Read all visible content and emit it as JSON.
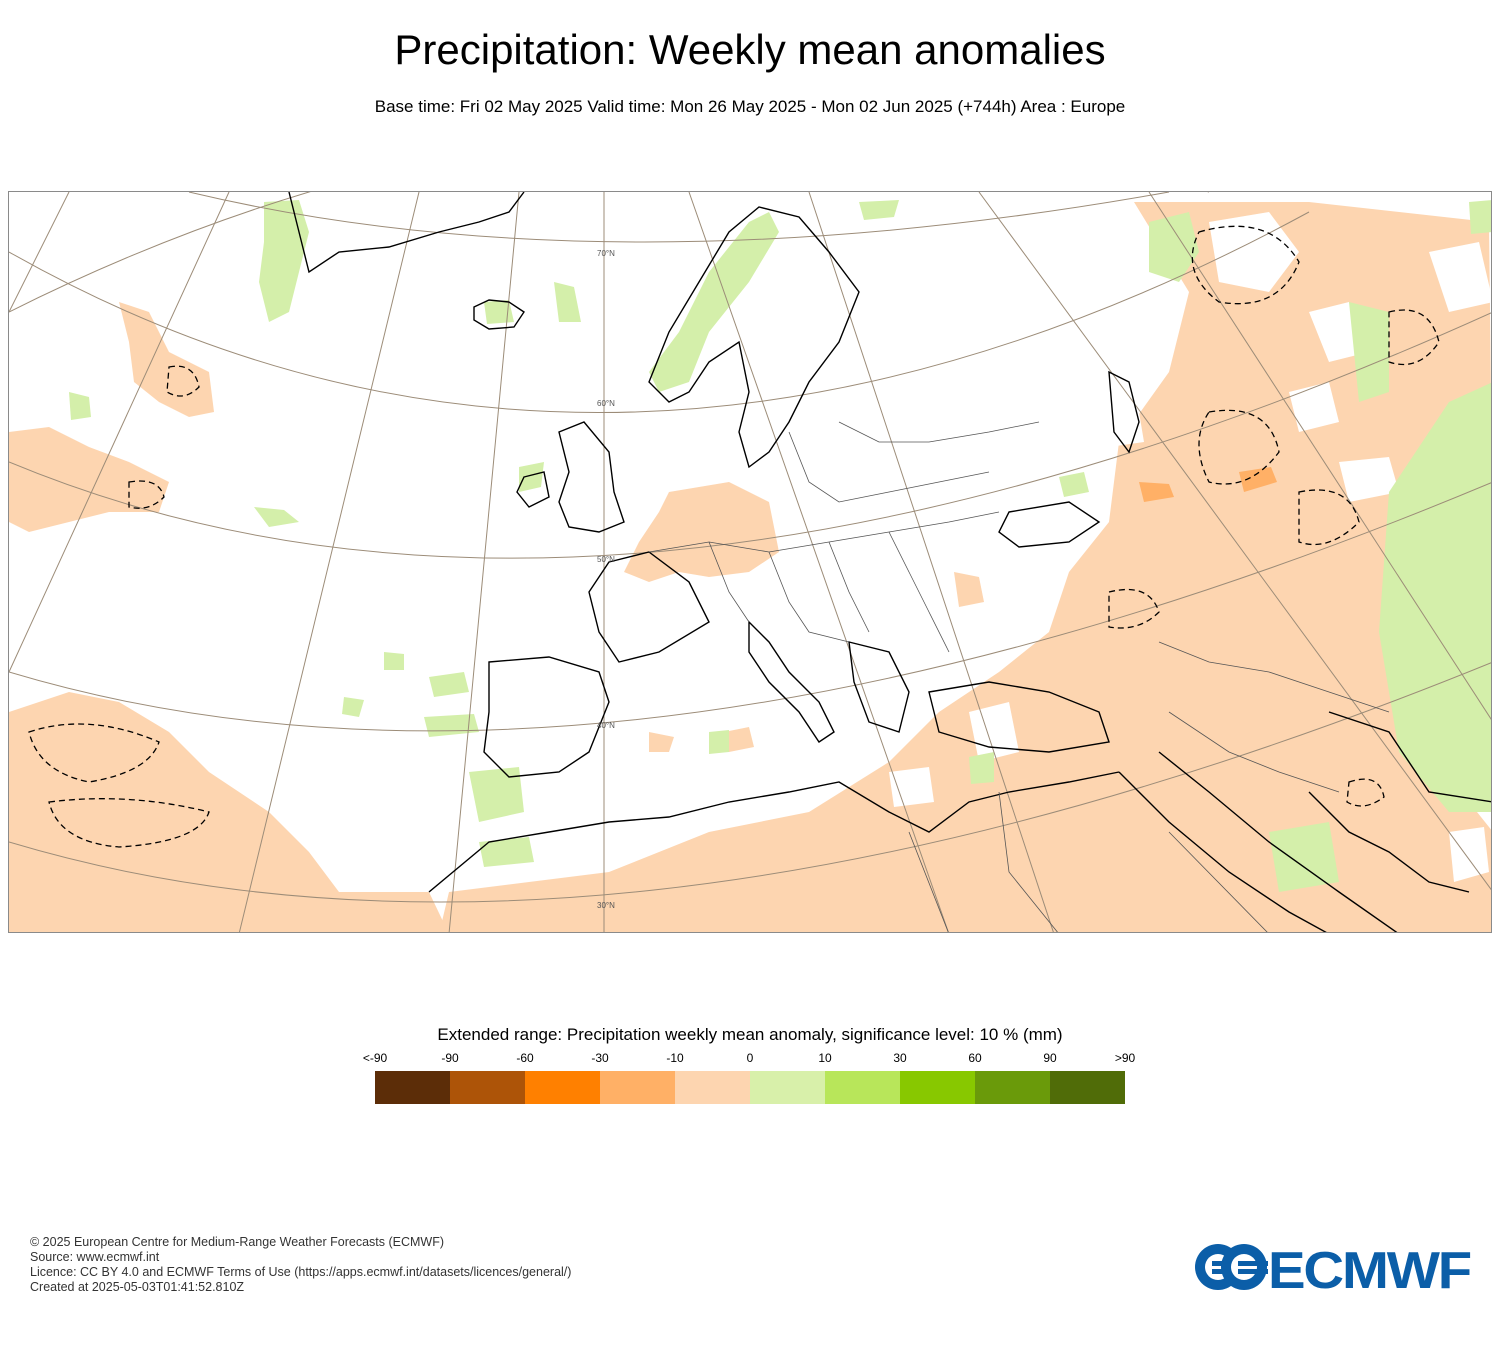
{
  "header": {
    "title": "Precipitation: Weekly mean anomalies",
    "subtitle": "Base time: Fri 02 May 2025 Valid time: Mon 26 May 2025 - Mon 02 Jun 2025 (+744h) Area : Europe"
  },
  "map": {
    "area": "Europe",
    "latitude_labels": [
      "70°N",
      "60°N",
      "50°N",
      "40°N",
      "30°N"
    ],
    "colors": {
      "land_outline": "#000000",
      "graticule": "#9c8c78",
      "dry_anomaly": "#fdd5b0",
      "wet_anomaly": "#d4efaa",
      "significance_contour": "#000000"
    }
  },
  "legend": {
    "title": "Extended range: Precipitation weekly mean anomaly, significance level: 10 % (mm)",
    "ticks": [
      "<-90",
      "-90",
      "-60",
      "-30",
      "-10",
      "0",
      "10",
      "30",
      "60",
      "90",
      ">90"
    ],
    "colors": [
      "#5c2d08",
      "#ad5408",
      "#ff8000",
      "#ffb066",
      "#fdd5b0",
      "#d8f0aa",
      "#b8e65a",
      "#88c800",
      "#6a9a0a",
      "#506c08"
    ]
  },
  "footer": {
    "lines": [
      "© 2025 European Centre for Medium-Range Weather Forecasts (ECMWF)",
      "Source: www.ecmwf.int",
      "Licence: CC BY 4.0 and ECMWF Terms of Use (https://apps.ecmwf.int/datasets/licences/general/)",
      "Created at 2025-05-03T01:41:52.810Z"
    ]
  },
  "logo": {
    "text": "ECMWF"
  }
}
